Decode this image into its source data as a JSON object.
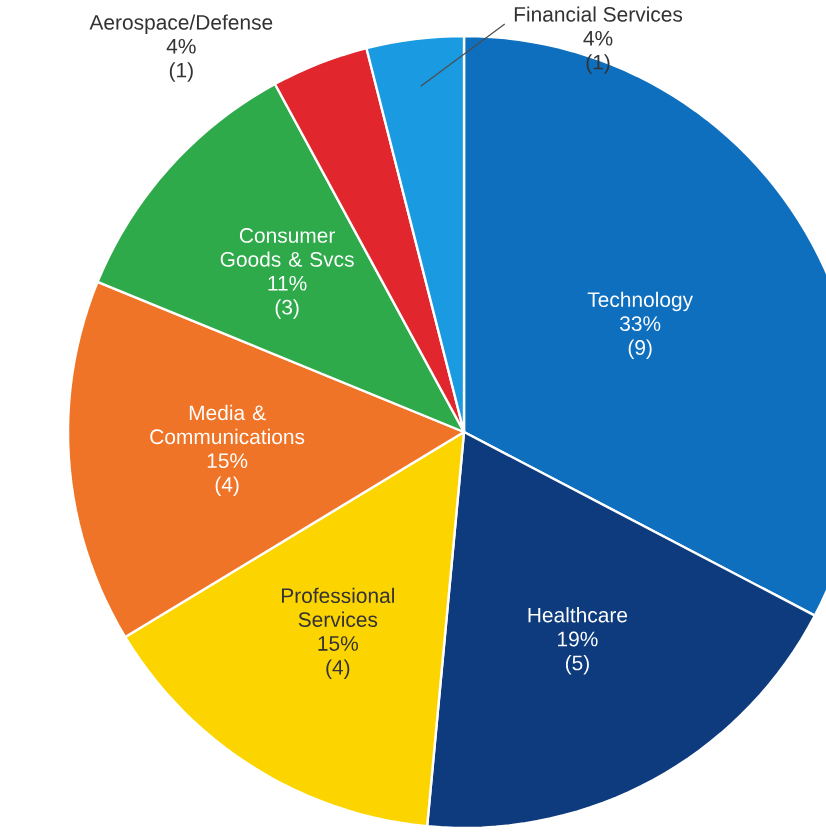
{
  "chart_data": {
    "type": "pie",
    "categories": [
      "Technology",
      "Healthcare",
      "Professional Services",
      "Media & Communications",
      "Consumer Goods & Svcs",
      "Aerospace/Defense",
      "Financial Services"
    ],
    "values": [
      33,
      19,
      15,
      15,
      11,
      4,
      4
    ],
    "value_labels": [
      "33%",
      "19%",
      "15%",
      "15%",
      "11%",
      "4%",
      "4%"
    ],
    "annotations": [
      "(9)",
      "(5)",
      "(4)",
      "(4)",
      "(3)",
      "(1)",
      "(1)"
    ],
    "colors": [
      "#0f6fbf",
      "#0d3b7d",
      "#fcd500",
      "#f07427",
      "#2eaa4a",
      "#e1262d",
      "#1a9ae0"
    ]
  }
}
